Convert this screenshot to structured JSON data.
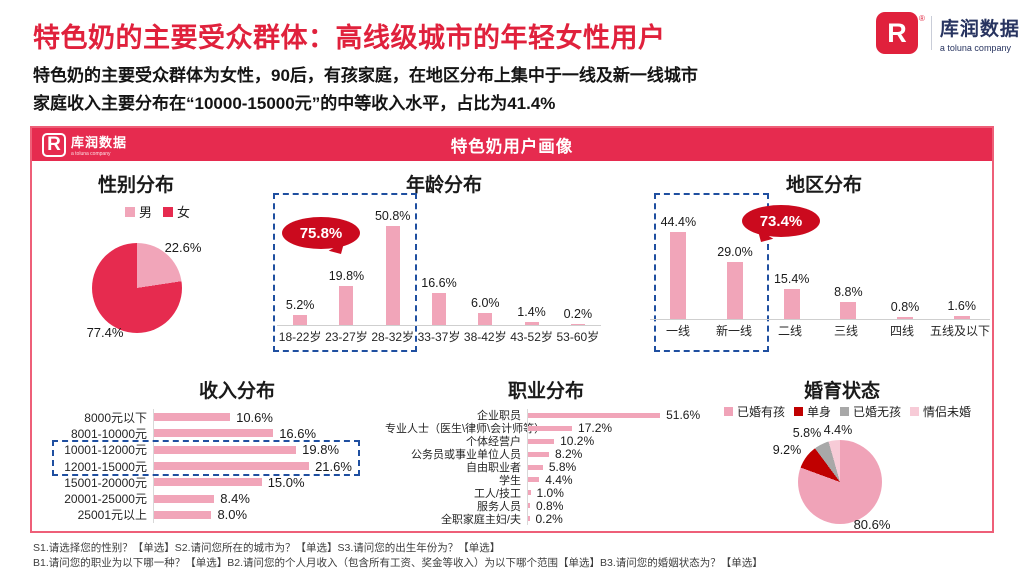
{
  "page": {
    "title": "特色奶的主要受众群体：高线级城市的年轻女性用户",
    "subtitle_line1": "特色奶的主要受众群体为女性，90后，有孩家庭，在地区分布上集中于一线及新一线城市",
    "subtitle_line2": "家庭收入主要分布在“10000-15000元”的中等收入水平，占比为41.4%",
    "footnote_line1": "S1.请选择您的性别？【单选】S2.请问您所在的城市为？【单选】S3.请问您的出生年份为？【单选】",
    "footnote_line2": "B1.请问您的职业为以下哪一种？【单选】B2.请问您的个人月收入（包含所有工资、奖金等收入）为以下哪个范围【单选】B3.请问您的婚姻状态为？【单选】"
  },
  "brand": {
    "name": "库润数据",
    "tagline": "a toluna company",
    "logo_letter": "R",
    "reg_mark": "®"
  },
  "banner": {
    "title": "特色奶用户画像"
  },
  "colors": {
    "accent_red": "#e0213c",
    "banner_red": "#e62b4f",
    "bar_pink": "#f1a5b9",
    "bubble_red": "#cb0a1e",
    "dash_blue": "#1f4fa0",
    "card_border": "#ee5f78"
  },
  "chart_data": [
    {
      "id": "gender",
      "type": "pie",
      "title": "性别分布",
      "legend_position": "top",
      "slices": [
        {
          "label": "男",
          "value": 22.6,
          "display": "22.6%",
          "color": "#f1a5b9"
        },
        {
          "label": "女",
          "value": 77.4,
          "display": "77.4%",
          "color": "#e62b4f"
        }
      ]
    },
    {
      "id": "age",
      "type": "bar",
      "title": "年龄分布",
      "categories": [
        "18-22岁",
        "23-27岁",
        "28-32岁",
        "33-37岁",
        "38-42岁",
        "43-52岁",
        "53-60岁"
      ],
      "values": [
        5.2,
        19.8,
        50.8,
        16.6,
        6.0,
        1.4,
        0.2
      ],
      "value_labels": [
        "5.2%",
        "19.8%",
        "50.8%",
        "16.6%",
        "6.0%",
        "1.4%",
        "0.2%"
      ],
      "bar_color": "#f1a5b9",
      "callout": {
        "text": "75.8%",
        "covers": "18-32岁（前三组合计）"
      },
      "grid": false
    },
    {
      "id": "region",
      "type": "bar",
      "title": "地区分布",
      "categories": [
        "一线",
        "新一线",
        "二线",
        "三线",
        "四线",
        "五线及以下"
      ],
      "values": [
        44.4,
        29.0,
        15.4,
        8.8,
        0.8,
        1.6
      ],
      "value_labels": [
        "44.4%",
        "29.0%",
        "15.4%",
        "8.8%",
        "0.8%",
        "1.6%"
      ],
      "bar_color": "#f1a5b9",
      "callout": {
        "text": "73.4%",
        "covers": "一线+新一线合计"
      },
      "grid": false
    },
    {
      "id": "income",
      "type": "bar",
      "orientation": "horizontal",
      "title": "收入分布",
      "categories": [
        "8000元以下",
        "8001-10000元",
        "10001-12000元",
        "12001-15000元",
        "15001-20000元",
        "20001-25000元",
        "25001元以上"
      ],
      "values": [
        10.6,
        16.6,
        19.8,
        21.6,
        15.0,
        8.4,
        8.0
      ],
      "value_labels": [
        "10.6%",
        "16.6%",
        "19.8%",
        "21.6%",
        "15.0%",
        "8.4%",
        "8.0%"
      ],
      "bar_color": "#f1a5b9",
      "highlight_rows": [
        2,
        3
      ]
    },
    {
      "id": "occupation",
      "type": "bar",
      "orientation": "horizontal",
      "title": "职业分布",
      "categories": [
        "企业职员",
        "专业人士（医生\\律师\\会计师等）",
        "个体经营户",
        "公务员或事业单位人员",
        "自由职业者",
        "学生",
        "工人/技工",
        "服务人员",
        "全职家庭主妇/夫"
      ],
      "values": [
        51.6,
        17.2,
        10.2,
        8.2,
        5.8,
        4.4,
        1.0,
        0.8,
        0.2
      ],
      "value_labels": [
        "51.6%",
        "17.2%",
        "10.2%",
        "8.2%",
        "5.8%",
        "4.4%",
        "1.0%",
        "0.8%",
        "0.2%"
      ],
      "bar_color": "#f1a5b9"
    },
    {
      "id": "marital",
      "type": "pie",
      "title": "婚育状态",
      "legend_position": "top",
      "slices": [
        {
          "label": "已婚有孩",
          "value": 80.6,
          "display": "80.6%",
          "color": "#f0a3b8"
        },
        {
          "label": "单身",
          "value": 9.2,
          "display": "9.2%",
          "color": "#c00000"
        },
        {
          "label": "已婚无孩",
          "value": 5.8,
          "display": "5.8%",
          "color": "#a8a8a8"
        },
        {
          "label": "情侣未婚",
          "value": 4.4,
          "display": "4.4%",
          "color": "#f7cbd7"
        }
      ]
    }
  ]
}
